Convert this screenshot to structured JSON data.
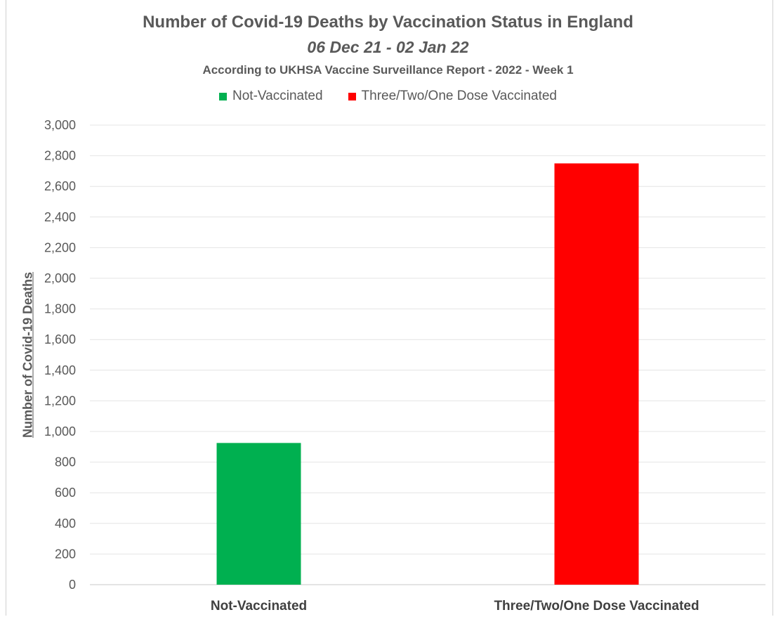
{
  "chart_data": {
    "type": "bar",
    "title": "Number of Covid-19 Deaths by Vaccination Status in England",
    "subtitle": "06 Dec 21 - 02 Jan 22",
    "source_note": "According to UKHSA Vaccine Surveillance Report - 2022 - Week 1",
    "ylabel": "Number of Covid-19 Deaths",
    "xlabel": "",
    "categories": [
      "Not-Vaccinated",
      "Three/Two/One Dose Vaccinated"
    ],
    "values": [
      925,
      2750
    ],
    "colors": [
      "#00b050",
      "#ff0000"
    ],
    "ylim": [
      0,
      3000
    ],
    "yticks": [
      "0",
      "200",
      "400",
      "600",
      "800",
      "1,000",
      "1,200",
      "1,400",
      "1,600",
      "1,800",
      "2,000",
      "2,200",
      "2,400",
      "2,600",
      "2,800",
      "3,000"
    ],
    "grid": true,
    "legend": {
      "position": "top",
      "entries": [
        {
          "label": "Not-Vaccinated",
          "color": "#00b050"
        },
        {
          "label": "Three/Two/One Dose Vaccinated",
          "color": "#ff0000"
        }
      ]
    }
  }
}
